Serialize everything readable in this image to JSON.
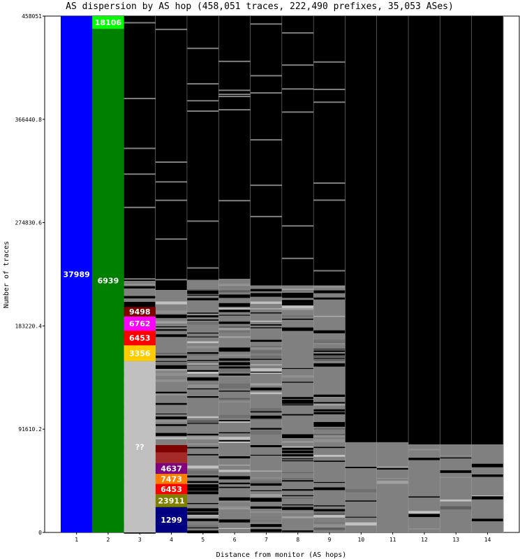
{
  "chart_data": {
    "type": "bar",
    "title": "AS dispersion by AS hop (458,051 traces, 222,490 prefixes, 35,053 ASes)",
    "xlabel": "Distance from monitor (AS hops)",
    "ylabel": "Number of traces",
    "categories": [
      "1",
      "2",
      "3",
      "4",
      "5",
      "6",
      "7",
      "8",
      "9",
      "10",
      "11",
      "12",
      "13",
      "14"
    ],
    "ylim": [
      0,
      458051
    ],
    "yticks": [
      "0",
      "91610.2",
      "183220.4",
      "274830.6",
      "366440.8",
      "458051"
    ],
    "stacks": [
      {
        "hop": "1",
        "segments": [
          {
            "label": "37989",
            "from": 0,
            "to": 458051,
            "color": "#0000ff"
          }
        ]
      },
      {
        "hop": "2",
        "segments": [
          {
            "label": "6939",
            "from": 0,
            "to": 446800,
            "color": "#008000"
          },
          {
            "label": "18106",
            "from": 446800,
            "to": 458051,
            "color": "#00ff00"
          }
        ]
      },
      {
        "hop": "3",
        "segments": [
          {
            "label": "??",
            "from": 0,
            "to": 152000,
            "color": "#c0c0c0"
          },
          {
            "label": "3356",
            "from": 152000,
            "to": 166000,
            "color": "#ffcc00"
          },
          {
            "label": "6453",
            "from": 166000,
            "to": 179000,
            "color": "#ff0000"
          },
          {
            "label": "6762",
            "from": 179000,
            "to": 191500,
            "color": "#ff00ff"
          },
          {
            "label": "9498",
            "from": 191500,
            "to": 200000,
            "color": "#800000"
          }
        ]
      },
      {
        "hop": "4",
        "segments": [
          {
            "label": "1299",
            "from": 0,
            "to": 22500,
            "color": "#000080"
          },
          {
            "label": "23911",
            "from": 22500,
            "to": 34000,
            "color": "#808000"
          },
          {
            "label": "6453",
            "from": 34000,
            "to": 43000,
            "color": "#ff0000"
          },
          {
            "label": "7473",
            "from": 43000,
            "to": 52000,
            "color": "#ff8000"
          },
          {
            "label": "4637",
            "from": 52000,
            "to": 61500,
            "color": "#800080"
          },
          {
            "label": "",
            "from": 61500,
            "to": 71000,
            "color": "#a52a2a"
          },
          {
            "label": "",
            "from": 71000,
            "to": 77500,
            "color": "#800000"
          }
        ]
      }
    ],
    "hop_totals": [
      458051,
      458051,
      223000,
      215000,
      224000,
      225000,
      219000,
      219000,
      219000,
      80000,
      80000,
      78000,
      78000,
      78000
    ]
  }
}
